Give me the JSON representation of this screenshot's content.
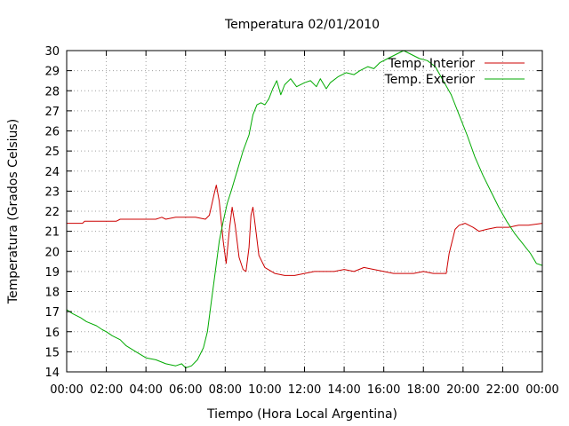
{
  "chart_data": {
    "type": "line",
    "title": "Temperatura 02/01/2010",
    "xlabel": "Tiempo (Hora Local Argentina)",
    "ylabel": "Temperatura (Grados Celsius)",
    "xlim": [
      0,
      24
    ],
    "ylim": [
      14,
      30
    ],
    "x_ticks": [
      {
        "value": 0,
        "label": "00:00"
      },
      {
        "value": 2,
        "label": "02:00"
      },
      {
        "value": 4,
        "label": "04:00"
      },
      {
        "value": 6,
        "label": "06:00"
      },
      {
        "value": 8,
        "label": "08:00"
      },
      {
        "value": 10,
        "label": "10:00"
      },
      {
        "value": 12,
        "label": "12:00"
      },
      {
        "value": 14,
        "label": "14:00"
      },
      {
        "value": 16,
        "label": "16:00"
      },
      {
        "value": 18,
        "label": "18:00"
      },
      {
        "value": 20,
        "label": "20:00"
      },
      {
        "value": 22,
        "label": "22:00"
      },
      {
        "value": 24,
        "label": "00:00"
      }
    ],
    "y_ticks": [
      14,
      15,
      16,
      17,
      18,
      19,
      20,
      21,
      22,
      23,
      24,
      25,
      26,
      27,
      28,
      29,
      30
    ],
    "grid": true,
    "legend_position": "top-right",
    "series": [
      {
        "name": "Temp. Interior",
        "color": "#cc0000",
        "points": [
          [
            0,
            21.4
          ],
          [
            0.8,
            21.4
          ],
          [
            0.9,
            21.5
          ],
          [
            2.5,
            21.5
          ],
          [
            2.7,
            21.6
          ],
          [
            4.5,
            21.6
          ],
          [
            4.8,
            21.7
          ],
          [
            5,
            21.6
          ],
          [
            5.5,
            21.7
          ],
          [
            6.5,
            21.7
          ],
          [
            7,
            21.6
          ],
          [
            7.2,
            21.8
          ],
          [
            7.45,
            22.9
          ],
          [
            7.55,
            23.3
          ],
          [
            7.7,
            22.5
          ],
          [
            7.9,
            20.5
          ],
          [
            8.05,
            19.4
          ],
          [
            8.2,
            21.0
          ],
          [
            8.35,
            22.2
          ],
          [
            8.5,
            21.3
          ],
          [
            8.7,
            19.7
          ],
          [
            8.9,
            19.1
          ],
          [
            9.05,
            19.0
          ],
          [
            9.2,
            20.2
          ],
          [
            9.3,
            21.8
          ],
          [
            9.4,
            22.2
          ],
          [
            9.55,
            21.0
          ],
          [
            9.7,
            19.8
          ],
          [
            10,
            19.2
          ],
          [
            10.5,
            18.9
          ],
          [
            11,
            18.8
          ],
          [
            11.5,
            18.8
          ],
          [
            12,
            18.9
          ],
          [
            12.5,
            19.0
          ],
          [
            13,
            19.0
          ],
          [
            13.5,
            19.0
          ],
          [
            14,
            19.1
          ],
          [
            14.5,
            19.0
          ],
          [
            15,
            19.2
          ],
          [
            15.5,
            19.1
          ],
          [
            16,
            19.0
          ],
          [
            16.5,
            18.9
          ],
          [
            17,
            18.9
          ],
          [
            17.5,
            18.9
          ],
          [
            18,
            19.0
          ],
          [
            18.5,
            18.9
          ],
          [
            19,
            18.9
          ],
          [
            19.15,
            18.9
          ],
          [
            19.3,
            19.9
          ],
          [
            19.6,
            21.1
          ],
          [
            19.8,
            21.3
          ],
          [
            20.1,
            21.4
          ],
          [
            20.5,
            21.2
          ],
          [
            20.8,
            21.0
          ],
          [
            21.2,
            21.1
          ],
          [
            21.7,
            21.2
          ],
          [
            22.3,
            21.2
          ],
          [
            22.8,
            21.3
          ],
          [
            23.3,
            21.3
          ],
          [
            24,
            21.4
          ]
        ]
      },
      {
        "name": "Temp. Exterior",
        "color": "#00aa00",
        "points": [
          [
            0,
            17.1
          ],
          [
            0.3,
            16.9
          ],
          [
            0.7,
            16.7
          ],
          [
            1,
            16.5
          ],
          [
            1.5,
            16.3
          ],
          [
            1.8,
            16.1
          ],
          [
            2,
            16.0
          ],
          [
            2.3,
            15.8
          ],
          [
            2.7,
            15.6
          ],
          [
            3,
            15.3
          ],
          [
            3.5,
            15.0
          ],
          [
            4,
            14.7
          ],
          [
            4.5,
            14.6
          ],
          [
            5,
            14.4
          ],
          [
            5.5,
            14.3
          ],
          [
            5.8,
            14.4
          ],
          [
            6,
            14.2
          ],
          [
            6.3,
            14.3
          ],
          [
            6.6,
            14.6
          ],
          [
            6.9,
            15.2
          ],
          [
            7.1,
            16.0
          ],
          [
            7.3,
            17.5
          ],
          [
            7.5,
            19.0
          ],
          [
            7.7,
            20.5
          ],
          [
            7.9,
            21.5
          ],
          [
            8.1,
            22.4
          ],
          [
            8.3,
            23.0
          ],
          [
            8.6,
            24.0
          ],
          [
            8.9,
            25.0
          ],
          [
            9.2,
            25.8
          ],
          [
            9.4,
            26.8
          ],
          [
            9.6,
            27.3
          ],
          [
            9.8,
            27.4
          ],
          [
            10,
            27.3
          ],
          [
            10.2,
            27.6
          ],
          [
            10.4,
            28.1
          ],
          [
            10.6,
            28.5
          ],
          [
            10.8,
            27.8
          ],
          [
            11,
            28.3
          ],
          [
            11.3,
            28.6
          ],
          [
            11.6,
            28.2
          ],
          [
            12,
            28.4
          ],
          [
            12.3,
            28.5
          ],
          [
            12.6,
            28.2
          ],
          [
            12.8,
            28.6
          ],
          [
            13.1,
            28.1
          ],
          [
            13.3,
            28.4
          ],
          [
            13.7,
            28.7
          ],
          [
            14.1,
            28.9
          ],
          [
            14.5,
            28.8
          ],
          [
            14.8,
            29.0
          ],
          [
            15.2,
            29.2
          ],
          [
            15.5,
            29.1
          ],
          [
            15.8,
            29.4
          ],
          [
            16.2,
            29.6
          ],
          [
            16.6,
            29.8
          ],
          [
            17,
            30.0
          ],
          [
            17.4,
            29.8
          ],
          [
            17.8,
            29.6
          ],
          [
            18.2,
            29.5
          ],
          [
            18.6,
            29.2
          ],
          [
            19,
            28.5
          ],
          [
            19.4,
            27.8
          ],
          [
            19.8,
            26.8
          ],
          [
            20.2,
            25.8
          ],
          [
            20.6,
            24.7
          ],
          [
            21,
            23.8
          ],
          [
            21.4,
            23.0
          ],
          [
            21.8,
            22.2
          ],
          [
            22.2,
            21.5
          ],
          [
            22.6,
            20.9
          ],
          [
            23,
            20.4
          ],
          [
            23.4,
            19.9
          ],
          [
            23.7,
            19.4
          ],
          [
            24,
            19.3
          ]
        ]
      }
    ]
  }
}
